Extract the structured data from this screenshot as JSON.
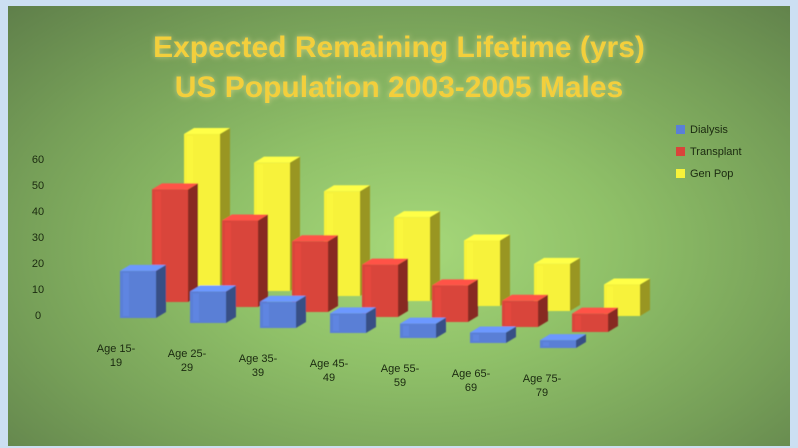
{
  "slide": {
    "title_line1": "Expected Remaining Lifetime (yrs)",
    "title_line2": "US Population 2003-2005 Males"
  },
  "colors": {
    "title": "#f3cf3c",
    "background": "#8fc068",
    "dialysis": "#5a7fd6",
    "transplant": "#d9443a",
    "genpop": "#f7f23a"
  },
  "chart_data": {
    "type": "bar",
    "subtype": "3d-clustered-column",
    "categories": [
      [
        "Age 15-",
        "19"
      ],
      [
        "Age 25-",
        "29"
      ],
      [
        "Age 35-",
        "39"
      ],
      [
        "Age 45-",
        "49"
      ],
      [
        "Age 55-",
        "59"
      ],
      [
        "Age 65-",
        "69"
      ],
      [
        "Age 75-",
        "79"
      ]
    ],
    "series": [
      {
        "name": "Dialysis",
        "color": "#5a7fd6",
        "values": [
          18,
          12,
          10,
          7.5,
          5.5,
          4,
          3
        ]
      },
      {
        "name": "Transplant",
        "color": "#d9443a",
        "values": [
          43,
          33,
          27,
          20,
          14,
          10,
          7
        ]
      },
      {
        "name": "Gen Pop",
        "color": "#f7f23a",
        "values": [
          58,
          49,
          40,
          32,
          25,
          18,
          12
        ]
      }
    ],
    "yticks": [
      0,
      10,
      20,
      30,
      40,
      50,
      60
    ],
    "ylim": [
      0,
      60
    ],
    "grid": false,
    "legend_position": "right"
  }
}
